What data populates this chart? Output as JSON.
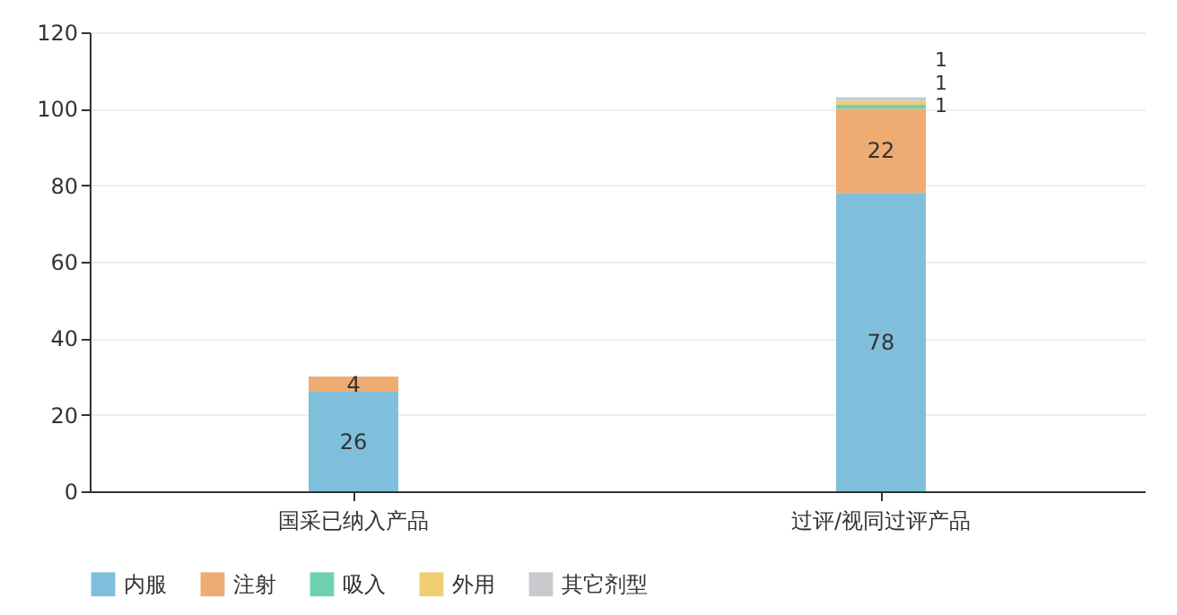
{
  "chart_data": {
    "type": "bar",
    "stacked": true,
    "categories": [
      "国采已纳入产品",
      "过评/视同过评产品"
    ],
    "series": [
      {
        "name": "内服",
        "color": "#7fbfdc",
        "values": [
          26,
          78
        ],
        "value_labels": [
          "26",
          "78"
        ]
      },
      {
        "name": "注射",
        "color": "#eeac72",
        "values": [
          4,
          22
        ],
        "value_labels": [
          "4",
          "22"
        ]
      },
      {
        "name": "吸入",
        "color": "#6dd1b0",
        "values": [
          0,
          1
        ],
        "value_labels": [
          null,
          "1"
        ]
      },
      {
        "name": "外用",
        "color": "#efce74",
        "values": [
          0,
          1
        ],
        "value_labels": [
          null,
          "1"
        ]
      },
      {
        "name": "其它剂型",
        "color": "#c8cacd",
        "values": [
          0,
          1
        ],
        "value_labels": [
          null,
          "1"
        ]
      }
    ],
    "ylim": [
      0,
      120
    ],
    "yticks": [
      0,
      20,
      40,
      60,
      80,
      100,
      120
    ],
    "grid": "y",
    "legend": "bottom"
  }
}
